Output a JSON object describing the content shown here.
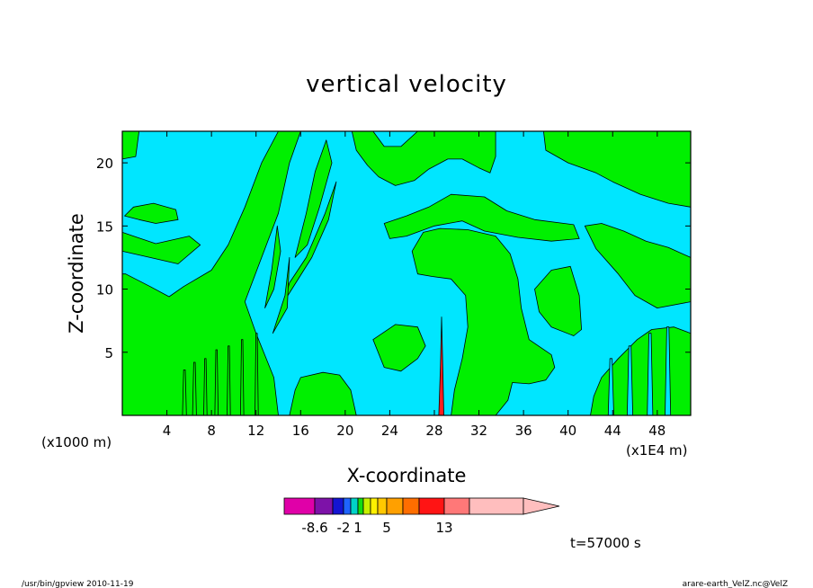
{
  "chart_data": {
    "type": "heatmap",
    "title": "vertical velocity",
    "xlabel": "X-coordinate",
    "ylabel": "Z-coordinate",
    "x_unit_left": "(x1000 m)",
    "x_unit_right": "(x1E4 m)",
    "x_ticks": [
      "4",
      "8",
      "12",
      "16",
      "20",
      "24",
      "28",
      "32",
      "36",
      "40",
      "44",
      "48"
    ],
    "x_tick_values": [
      4,
      8,
      12,
      16,
      20,
      24,
      28,
      32,
      36,
      40,
      44,
      48
    ],
    "xlim": [
      0,
      51
    ],
    "y_ticks": [
      "5",
      "10",
      "15",
      "20"
    ],
    "y_tick_values": [
      5,
      10,
      15,
      20
    ],
    "ylim": [
      0,
      22.5
    ],
    "colorbar": {
      "labels": [
        "-8.6",
        "-2",
        "1",
        "5",
        "13"
      ],
      "colors": [
        "#e000a8",
        "#7d12a8",
        "#1414d2",
        "#1e64ff",
        "#00d2c8",
        "#12dc12",
        "#c8f000",
        "#fff000",
        "#ffc800",
        "#ffa000",
        "#ff6e00",
        "#ff1414",
        "#ff7878",
        "#ffbebe"
      ]
    },
    "fill_colors": {
      "background": "#00e6ff",
      "positive": "#00f000",
      "strong": "#ff2020"
    },
    "time_label": "t=57000 s"
  },
  "footer": {
    "left": "/usr/bin/gpview   2010-11-19",
    "right": "arare-earth_VelZ.nc@VelZ"
  }
}
